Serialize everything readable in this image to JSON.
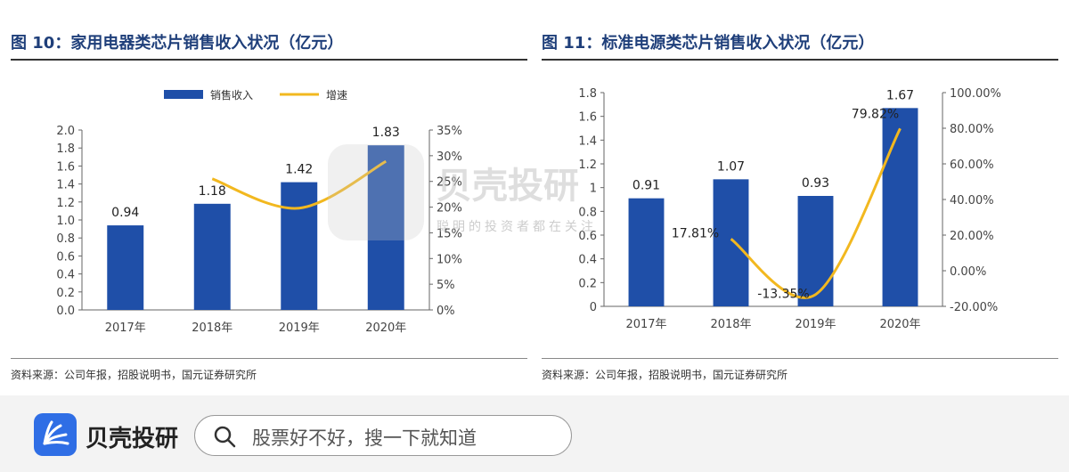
{
  "colors": {
    "bar": "#1f4fa8",
    "line": "#f2b81f",
    "title": "#1f3f7a",
    "logo": "#2f6ee5"
  },
  "left": {
    "title": "图 10：家用电器类芯片销售收入状况（亿元）",
    "source": "资料来源：公司年报，招股说明书，国元证券研究所"
  },
  "right": {
    "title": "图 11：标准电源类芯片销售收入状况（亿元）",
    "source": "资料来源：公司年报，招股说明书，国元证券研究所"
  },
  "chart_data": [
    {
      "type": "bar",
      "categories": [
        "2017年",
        "2018年",
        "2019年",
        "2020年"
      ],
      "series": [
        {
          "name": "销售收入",
          "type": "bar",
          "values": [
            0.94,
            1.18,
            1.42,
            1.83
          ],
          "axis": "left"
        },
        {
          "name": "增速",
          "type": "line",
          "values": [
            null,
            25.5,
            19.8,
            28.9
          ],
          "axis": "right"
        }
      ],
      "data_labels": [
        "0.94",
        "1.18",
        "1.42",
        "1.83"
      ],
      "y_left": {
        "range": [
          0,
          2.0
        ],
        "ticks": [
          "0.0",
          "0.2",
          "0.4",
          "0.6",
          "0.8",
          "1.0",
          "1.2",
          "1.4",
          "1.6",
          "1.8",
          "2.0"
        ]
      },
      "y_right": {
        "range": [
          0,
          35
        ],
        "ticks": [
          "0%",
          "5%",
          "10%",
          "15%",
          "20%",
          "25%",
          "30%",
          "35%"
        ]
      },
      "legend": "top"
    },
    {
      "type": "bar",
      "categories": [
        "2017年",
        "2018年",
        "2019年",
        "2020年"
      ],
      "series": [
        {
          "type": "bar",
          "values": [
            0.91,
            1.07,
            0.93,
            1.67
          ],
          "axis": "left"
        },
        {
          "type": "line",
          "values": [
            null,
            17.81,
            -13.35,
            79.82
          ],
          "axis": "right"
        }
      ],
      "data_labels": [
        "0.91",
        "1.07",
        "0.93",
        "1.67"
      ],
      "line_labels": [
        "17.81%",
        "-13.35%",
        "79.82%"
      ],
      "y_left": {
        "range": [
          0,
          1.8
        ],
        "ticks": [
          "0",
          "0.2",
          "0.4",
          "0.6",
          "0.8",
          "1",
          "1.2",
          "1.4",
          "1.6",
          "1.8"
        ]
      },
      "y_right": {
        "range": [
          -20,
          100
        ],
        "ticks": [
          "-20.00%",
          "0.00%",
          "20.00%",
          "40.00%",
          "60.00%",
          "80.00%",
          "100.00%"
        ]
      }
    }
  ],
  "watermark": {
    "brand": "贝壳投研",
    "slogan": "聪明的投资者都在关注"
  },
  "footer": {
    "brand": "贝壳投研",
    "search_placeholder": "股票好不好，搜一下就知道",
    "icon": "search-icon"
  }
}
